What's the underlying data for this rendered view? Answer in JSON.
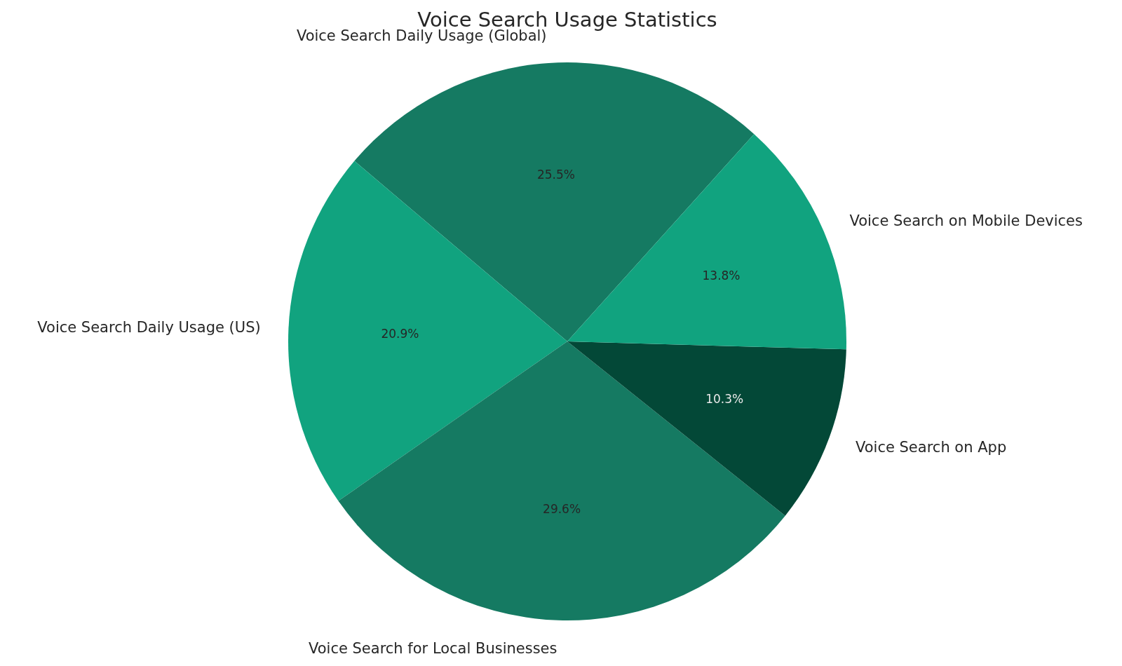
{
  "chart_data": {
    "type": "pie",
    "title": "Voice Search Usage Statistics",
    "categories": [
      "Voice Search Daily Usage (Global)",
      "Voice Search Daily Usage (US)",
      "Voice Search for Local Businesses",
      "Voice Search on App",
      "Voice Search on Mobile Devices"
    ],
    "values": [
      25.5,
      20.9,
      29.6,
      10.3,
      13.8
    ],
    "colors": [
      "#157a62",
      "#11a37f",
      "#157a62",
      "#034837",
      "#11a37f"
    ],
    "value_labels": [
      "25.5%",
      "20.9%",
      "29.6%",
      "10.3%",
      "13.8%"
    ]
  }
}
